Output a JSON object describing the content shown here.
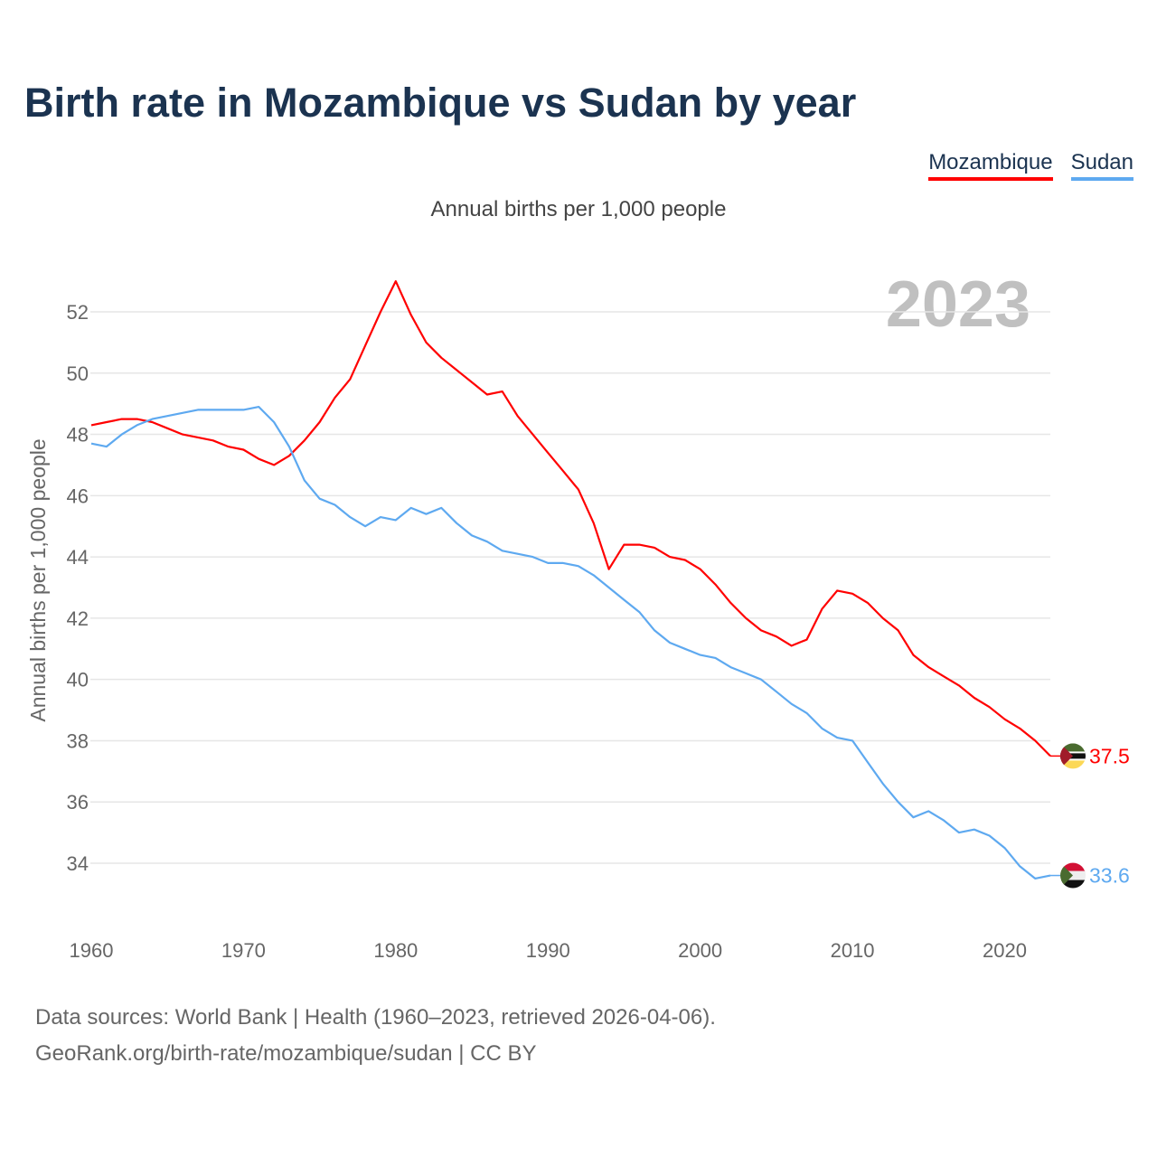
{
  "title": "Birth rate in Mozambique vs Sudan by year",
  "footer": {
    "line1": "Data sources: World Bank | Health (1960–2023, retrieved 2026-04-06).",
    "line2": "GeoRank.org/birth-rate/mozambique/sudan | CC BY"
  },
  "chart_data": {
    "type": "line",
    "title": "Birth rate in Mozambique vs Sudan by year",
    "subtitle": "Annual births per 1,000 people",
    "ylabel": "Annual births per 1,000 people",
    "xlabel": "",
    "year_label": "2023",
    "xlim": [
      1960,
      2023
    ],
    "ylim": [
      32,
      54
    ],
    "x_ticks": [
      "1960",
      "1970",
      "1980",
      "1990",
      "2000",
      "2010",
      "2020"
    ],
    "y_ticks": [
      "34",
      "36",
      "38",
      "40",
      "42",
      "44",
      "46",
      "48",
      "50",
      "52"
    ],
    "grid": true,
    "legend_placement": "top-right",
    "x": [
      1960,
      1961,
      1962,
      1963,
      1964,
      1965,
      1966,
      1967,
      1968,
      1969,
      1970,
      1971,
      1972,
      1973,
      1974,
      1975,
      1976,
      1977,
      1978,
      1979,
      1980,
      1981,
      1982,
      1983,
      1984,
      1985,
      1986,
      1987,
      1988,
      1989,
      1990,
      1991,
      1992,
      1993,
      1994,
      1995,
      1996,
      1997,
      1998,
      1999,
      2000,
      2001,
      2002,
      2003,
      2004,
      2005,
      2006,
      2007,
      2008,
      2009,
      2010,
      2011,
      2012,
      2013,
      2014,
      2015,
      2016,
      2017,
      2018,
      2019,
      2020,
      2021,
      2022,
      2023
    ],
    "series": [
      {
        "name": "Mozambique",
        "color": "#ff0000",
        "end_label": "37.5",
        "values": [
          48.3,
          48.4,
          48.5,
          48.5,
          48.4,
          48.2,
          48.0,
          47.9,
          47.8,
          47.6,
          47.5,
          47.2,
          47.0,
          47.3,
          47.8,
          48.4,
          49.2,
          49.8,
          50.9,
          52.0,
          53.0,
          51.9,
          51.0,
          50.5,
          50.1,
          49.7,
          49.3,
          49.4,
          48.6,
          48.0,
          47.4,
          46.8,
          46.2,
          45.1,
          43.6,
          44.4,
          44.4,
          44.3,
          44.0,
          43.9,
          43.6,
          43.1,
          42.5,
          42.0,
          41.6,
          41.4,
          41.1,
          41.3,
          42.3,
          42.9,
          42.8,
          42.5,
          42.0,
          41.6,
          40.8,
          40.4,
          40.1,
          39.8,
          39.4,
          39.1,
          38.7,
          38.4,
          38.0,
          37.5
        ]
      },
      {
        "name": "Sudan",
        "color": "#5ea9f0",
        "end_label": "33.6",
        "values": [
          47.7,
          47.6,
          48.0,
          48.3,
          48.5,
          48.6,
          48.7,
          48.8,
          48.8,
          48.8,
          48.8,
          48.9,
          48.4,
          47.6,
          46.5,
          45.9,
          45.7,
          45.3,
          45.0,
          45.3,
          45.2,
          45.6,
          45.4,
          45.6,
          45.1,
          44.7,
          44.5,
          44.2,
          44.1,
          44.0,
          43.8,
          43.8,
          43.7,
          43.4,
          43.0,
          42.6,
          42.2,
          41.6,
          41.2,
          41.0,
          40.8,
          40.7,
          40.4,
          40.2,
          40.0,
          39.6,
          39.2,
          38.9,
          38.4,
          38.1,
          38.0,
          37.3,
          36.6,
          36.0,
          35.5,
          35.7,
          35.4,
          35.0,
          35.1,
          34.9,
          34.5,
          33.9,
          33.5,
          33.6
        ]
      }
    ]
  }
}
